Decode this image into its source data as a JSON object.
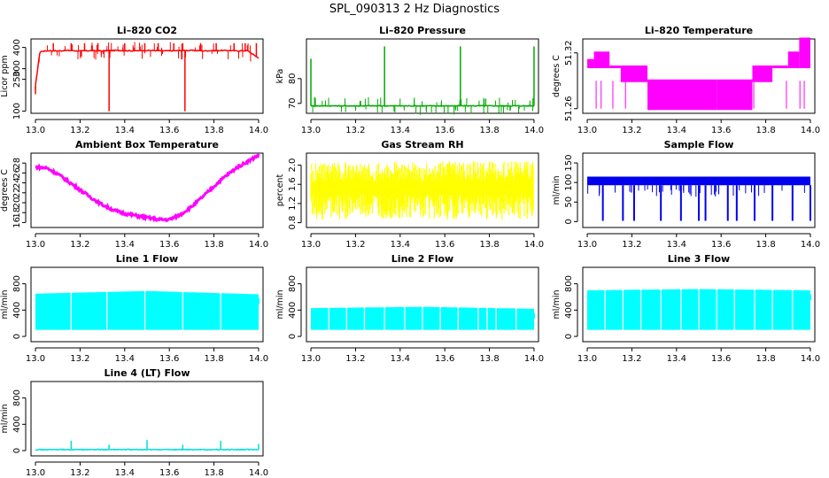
{
  "figure_title": "SPL_090313  2 Hz Diagnostics",
  "chart_data": [
    {
      "id": "co2",
      "type": "line",
      "title": "Li–820 CO2",
      "ylabel": "Licor ppm",
      "color": "#ff0000",
      "xlim": [
        12.98,
        14.02
      ],
      "ylim": [
        90,
        440
      ],
      "xticks": [
        "13.0",
        "13.2",
        "13.4",
        "13.6",
        "13.8",
        "14.0"
      ],
      "yticks": [
        "100",
        "250",
        "300",
        "400"
      ],
      "ytick_values": [
        100,
        250,
        300,
        400
      ],
      "x": [
        13.0,
        13.02,
        13.04,
        13.06,
        13.1,
        13.15,
        13.2,
        13.25,
        13.3,
        13.35,
        13.4,
        13.45,
        13.5,
        13.55,
        13.6,
        13.65,
        13.7,
        13.75,
        13.8,
        13.85,
        13.9,
        13.95,
        14.0
      ],
      "values": [
        220,
        380,
        383,
        385,
        384,
        386,
        383,
        385,
        384,
        386,
        385,
        384,
        386,
        385,
        384,
        385,
        386,
        384,
        385,
        386,
        384,
        385,
        350
      ],
      "spikes": [
        {
          "x": 13.0,
          "value": 180
        },
        {
          "x": 13.08,
          "value": 420
        },
        {
          "x": 13.16,
          "value": 420
        },
        {
          "x": 13.22,
          "value": 420
        },
        {
          "x": 13.28,
          "value": 420
        },
        {
          "x": 13.33,
          "value": 100
        },
        {
          "x": 13.4,
          "value": 420
        },
        {
          "x": 13.49,
          "value": 420
        },
        {
          "x": 13.55,
          "value": 420
        },
        {
          "x": 13.62,
          "value": 420
        },
        {
          "x": 13.66,
          "value": 420
        },
        {
          "x": 13.67,
          "value": 100
        },
        {
          "x": 13.74,
          "value": 420
        },
        {
          "x": 13.81,
          "value": 420
        },
        {
          "x": 13.89,
          "value": 420
        },
        {
          "x": 13.94,
          "value": 420
        },
        {
          "x": 13.99,
          "value": 420
        }
      ]
    },
    {
      "id": "pressure",
      "type": "line",
      "title": "Li–820 Pressure",
      "ylabel": "kPa",
      "color": "#00aa00",
      "xlim": [
        12.98,
        14.02
      ],
      "ylim": [
        66,
        96
      ],
      "xticks": [
        "13.0",
        "13.2",
        "13.4",
        "13.6",
        "13.8",
        "14.0"
      ],
      "yticks": [
        "70",
        "80"
      ],
      "ytick_values": [
        70,
        80
      ],
      "x": [
        13.0,
        13.1,
        13.2,
        13.3,
        13.4,
        13.5,
        13.6,
        13.7,
        13.8,
        13.9,
        14.0
      ],
      "values": [
        69,
        69,
        69,
        69,
        69,
        69,
        69,
        69,
        69,
        69,
        69
      ],
      "spikes": [
        {
          "x": 13.0,
          "value": 88
        },
        {
          "x": 13.33,
          "value": 93
        },
        {
          "x": 13.67,
          "value": 93
        },
        {
          "x": 14.0,
          "value": 93
        }
      ]
    },
    {
      "id": "temperature",
      "type": "step",
      "title": "Li–820 Temperature",
      "ylabel": "degrees C",
      "color": "#ff00ff",
      "xlim": [
        12.98,
        14.02
      ],
      "ylim": [
        51.255,
        51.335
      ],
      "xticks": [
        "13.0",
        "13.2",
        "13.4",
        "13.6",
        "13.8",
        "14.0"
      ],
      "yticks": [
        "51.26",
        "51.32"
      ],
      "ytick_values": [
        51.26,
        51.32
      ],
      "segments": [
        {
          "x0": 13.0,
          "x1": 13.03,
          "low": 51.305,
          "high": 51.312
        },
        {
          "x0": 13.03,
          "x1": 13.1,
          "low": 51.305,
          "high": 51.32
        },
        {
          "x0": 13.1,
          "x1": 13.15,
          "low": 51.305,
          "high": 51.305
        },
        {
          "x0": 13.15,
          "x1": 13.27,
          "low": 51.29,
          "high": 51.305
        },
        {
          "x0": 13.27,
          "x1": 13.58,
          "low": 51.26,
          "high": 51.29
        },
        {
          "x0": 13.58,
          "x1": 13.74,
          "low": 51.26,
          "high": 51.29
        },
        {
          "x0": 13.74,
          "x1": 13.83,
          "low": 51.29,
          "high": 51.305
        },
        {
          "x0": 13.83,
          "x1": 13.9,
          "low": 51.305,
          "high": 51.305
        },
        {
          "x0": 13.9,
          "x1": 13.95,
          "low": 51.305,
          "high": 51.32
        },
        {
          "x0": 13.95,
          "x1": 14.0,
          "low": 51.305,
          "high": 51.335
        }
      ]
    },
    {
      "id": "ambient",
      "type": "line",
      "title": "Ambient Box Temperature",
      "ylabel": "degrees C",
      "color": "#ff00ff",
      "xlim": [
        12.98,
        14.02
      ],
      "ylim": [
        15,
        30
      ],
      "xticks": [
        "13.0",
        "13.2",
        "13.4",
        "13.6",
        "13.8",
        "14.0"
      ],
      "yticks": [
        "16",
        "18",
        "20",
        "22",
        "24",
        "26",
        "28"
      ],
      "ytick_values": [
        16,
        18,
        20,
        22,
        24,
        26,
        28
      ],
      "x": [
        13.0,
        13.05,
        13.1,
        13.15,
        13.2,
        13.25,
        13.3,
        13.35,
        13.4,
        13.45,
        13.5,
        13.55,
        13.6,
        13.65,
        13.7,
        13.75,
        13.8,
        13.85,
        13.9,
        13.95,
        14.0
      ],
      "values": [
        27.2,
        27.0,
        25.8,
        24.2,
        22.6,
        21.0,
        19.6,
        18.5,
        17.8,
        17.4,
        17.0,
        16.6,
        16.6,
        17.6,
        19.2,
        21.2,
        23.3,
        25.3,
        27.0,
        28.3,
        29.6
      ]
    },
    {
      "id": "rh",
      "type": "noise",
      "title": "Gas Stream RH",
      "ylabel": "percent",
      "color": "#ffff00",
      "xlim": [
        12.98,
        14.02
      ],
      "ylim": [
        0.7,
        2.25
      ],
      "xticks": [
        "13.0",
        "13.2",
        "13.4",
        "13.6",
        "13.8",
        "14.0"
      ],
      "yticks": [
        "0.8",
        "1.2",
        "1.6",
        "2.0"
      ],
      "ytick_values": [
        0.8,
        1.2,
        1.6,
        2.0
      ],
      "x": [
        13.0,
        14.0
      ],
      "low": [
        0.85,
        0.85
      ],
      "high": [
        2.05,
        2.1
      ]
    },
    {
      "id": "sample",
      "type": "line",
      "title": "Sample Flow",
      "ylabel": "ml/min",
      "color": "#0000ee",
      "xlim": [
        12.98,
        14.02
      ],
      "ylim": [
        -15,
        175
      ],
      "xticks": [
        "13.0",
        "13.2",
        "13.4",
        "13.6",
        "13.8",
        "14.0"
      ],
      "yticks": [
        "0",
        "50",
        "100",
        "150"
      ],
      "ytick_values": [
        0,
        50,
        100,
        150
      ],
      "x": [
        13.0,
        14.0
      ],
      "values": [
        100,
        100
      ],
      "band": [
        93,
        115
      ],
      "dips": [
        13.07,
        13.16,
        13.21,
        13.33,
        13.42,
        13.5,
        13.53,
        13.63,
        13.67,
        13.75,
        13.83,
        13.92,
        14.0
      ]
    },
    {
      "id": "line1",
      "type": "band",
      "title": "Line 1 Flow",
      "ylabel": "ml/min",
      "color": "#00ffff",
      "xlim": [
        12.98,
        14.02
      ],
      "ylim": [
        -80,
        1050
      ],
      "xticks": [
        "13.0",
        "13.2",
        "13.4",
        "13.6",
        "13.8",
        "14.0"
      ],
      "yticks": [
        "0",
        "400",
        "800"
      ],
      "ytick_values": [
        0,
        400,
        800
      ],
      "x": [
        13.0,
        13.5,
        14.0
      ],
      "low": [
        100,
        100,
        100
      ],
      "high": [
        650,
        690,
        640
      ],
      "gaps": [
        13.16,
        13.32,
        13.49,
        13.66,
        13.83
      ]
    },
    {
      "id": "line2",
      "type": "band",
      "title": "Line 2 Flow",
      "ylabel": "ml/min",
      "color": "#00ffff",
      "xlim": [
        12.98,
        14.02
      ],
      "ylim": [
        -80,
        1050
      ],
      "xticks": [
        "13.0",
        "13.2",
        "13.4",
        "13.6",
        "13.8",
        "14.0"
      ],
      "yticks": [
        "0",
        "400",
        "800"
      ],
      "ytick_values": [
        0,
        400,
        800
      ],
      "x": [
        13.0,
        13.5,
        14.0
      ],
      "low": [
        100,
        100,
        100
      ],
      "high": [
        430,
        450,
        420
      ],
      "gaps": [
        13.08,
        13.16,
        13.24,
        13.33,
        13.42,
        13.5,
        13.58,
        13.66,
        13.75,
        13.79,
        13.83,
        13.92
      ]
    },
    {
      "id": "line3",
      "type": "band",
      "title": "Line 3 Flow",
      "ylabel": "ml/min",
      "color": "#00ffff",
      "xlim": [
        12.98,
        14.02
      ],
      "ylim": [
        -80,
        1050
      ],
      "xticks": [
        "13.0",
        "13.2",
        "13.4",
        "13.6",
        "13.8",
        "14.0"
      ],
      "yticks": [
        "0",
        "400",
        "800"
      ],
      "ytick_values": [
        0,
        400,
        800
      ],
      "x": [
        13.0,
        13.5,
        14.0
      ],
      "low": [
        100,
        100,
        100
      ],
      "high": [
        700,
        720,
        700
      ],
      "gaps": [
        13.08,
        13.16,
        13.24,
        13.33,
        13.42,
        13.5,
        13.58,
        13.66,
        13.75,
        13.83,
        13.92
      ]
    },
    {
      "id": "line4",
      "type": "line",
      "title": "Line 4 (LT) Flow",
      "ylabel": "ml/min",
      "color": "#00dddd",
      "xlim": [
        12.98,
        14.02
      ],
      "ylim": [
        -80,
        1050
      ],
      "xticks": [
        "13.0",
        "13.2",
        "13.4",
        "13.6",
        "13.8",
        "14.0"
      ],
      "yticks": [
        "0",
        "400",
        "800"
      ],
      "ytick_values": [
        0,
        400,
        800
      ],
      "x": [
        13.0,
        14.0
      ],
      "values": [
        15,
        15
      ],
      "spikes": [
        {
          "x": 13.16,
          "value": 150
        },
        {
          "x": 13.33,
          "value": 90
        },
        {
          "x": 13.5,
          "value": 160
        },
        {
          "x": 13.66,
          "value": 90
        },
        {
          "x": 13.83,
          "value": 150
        },
        {
          "x": 14.0,
          "value": 100
        }
      ]
    }
  ]
}
